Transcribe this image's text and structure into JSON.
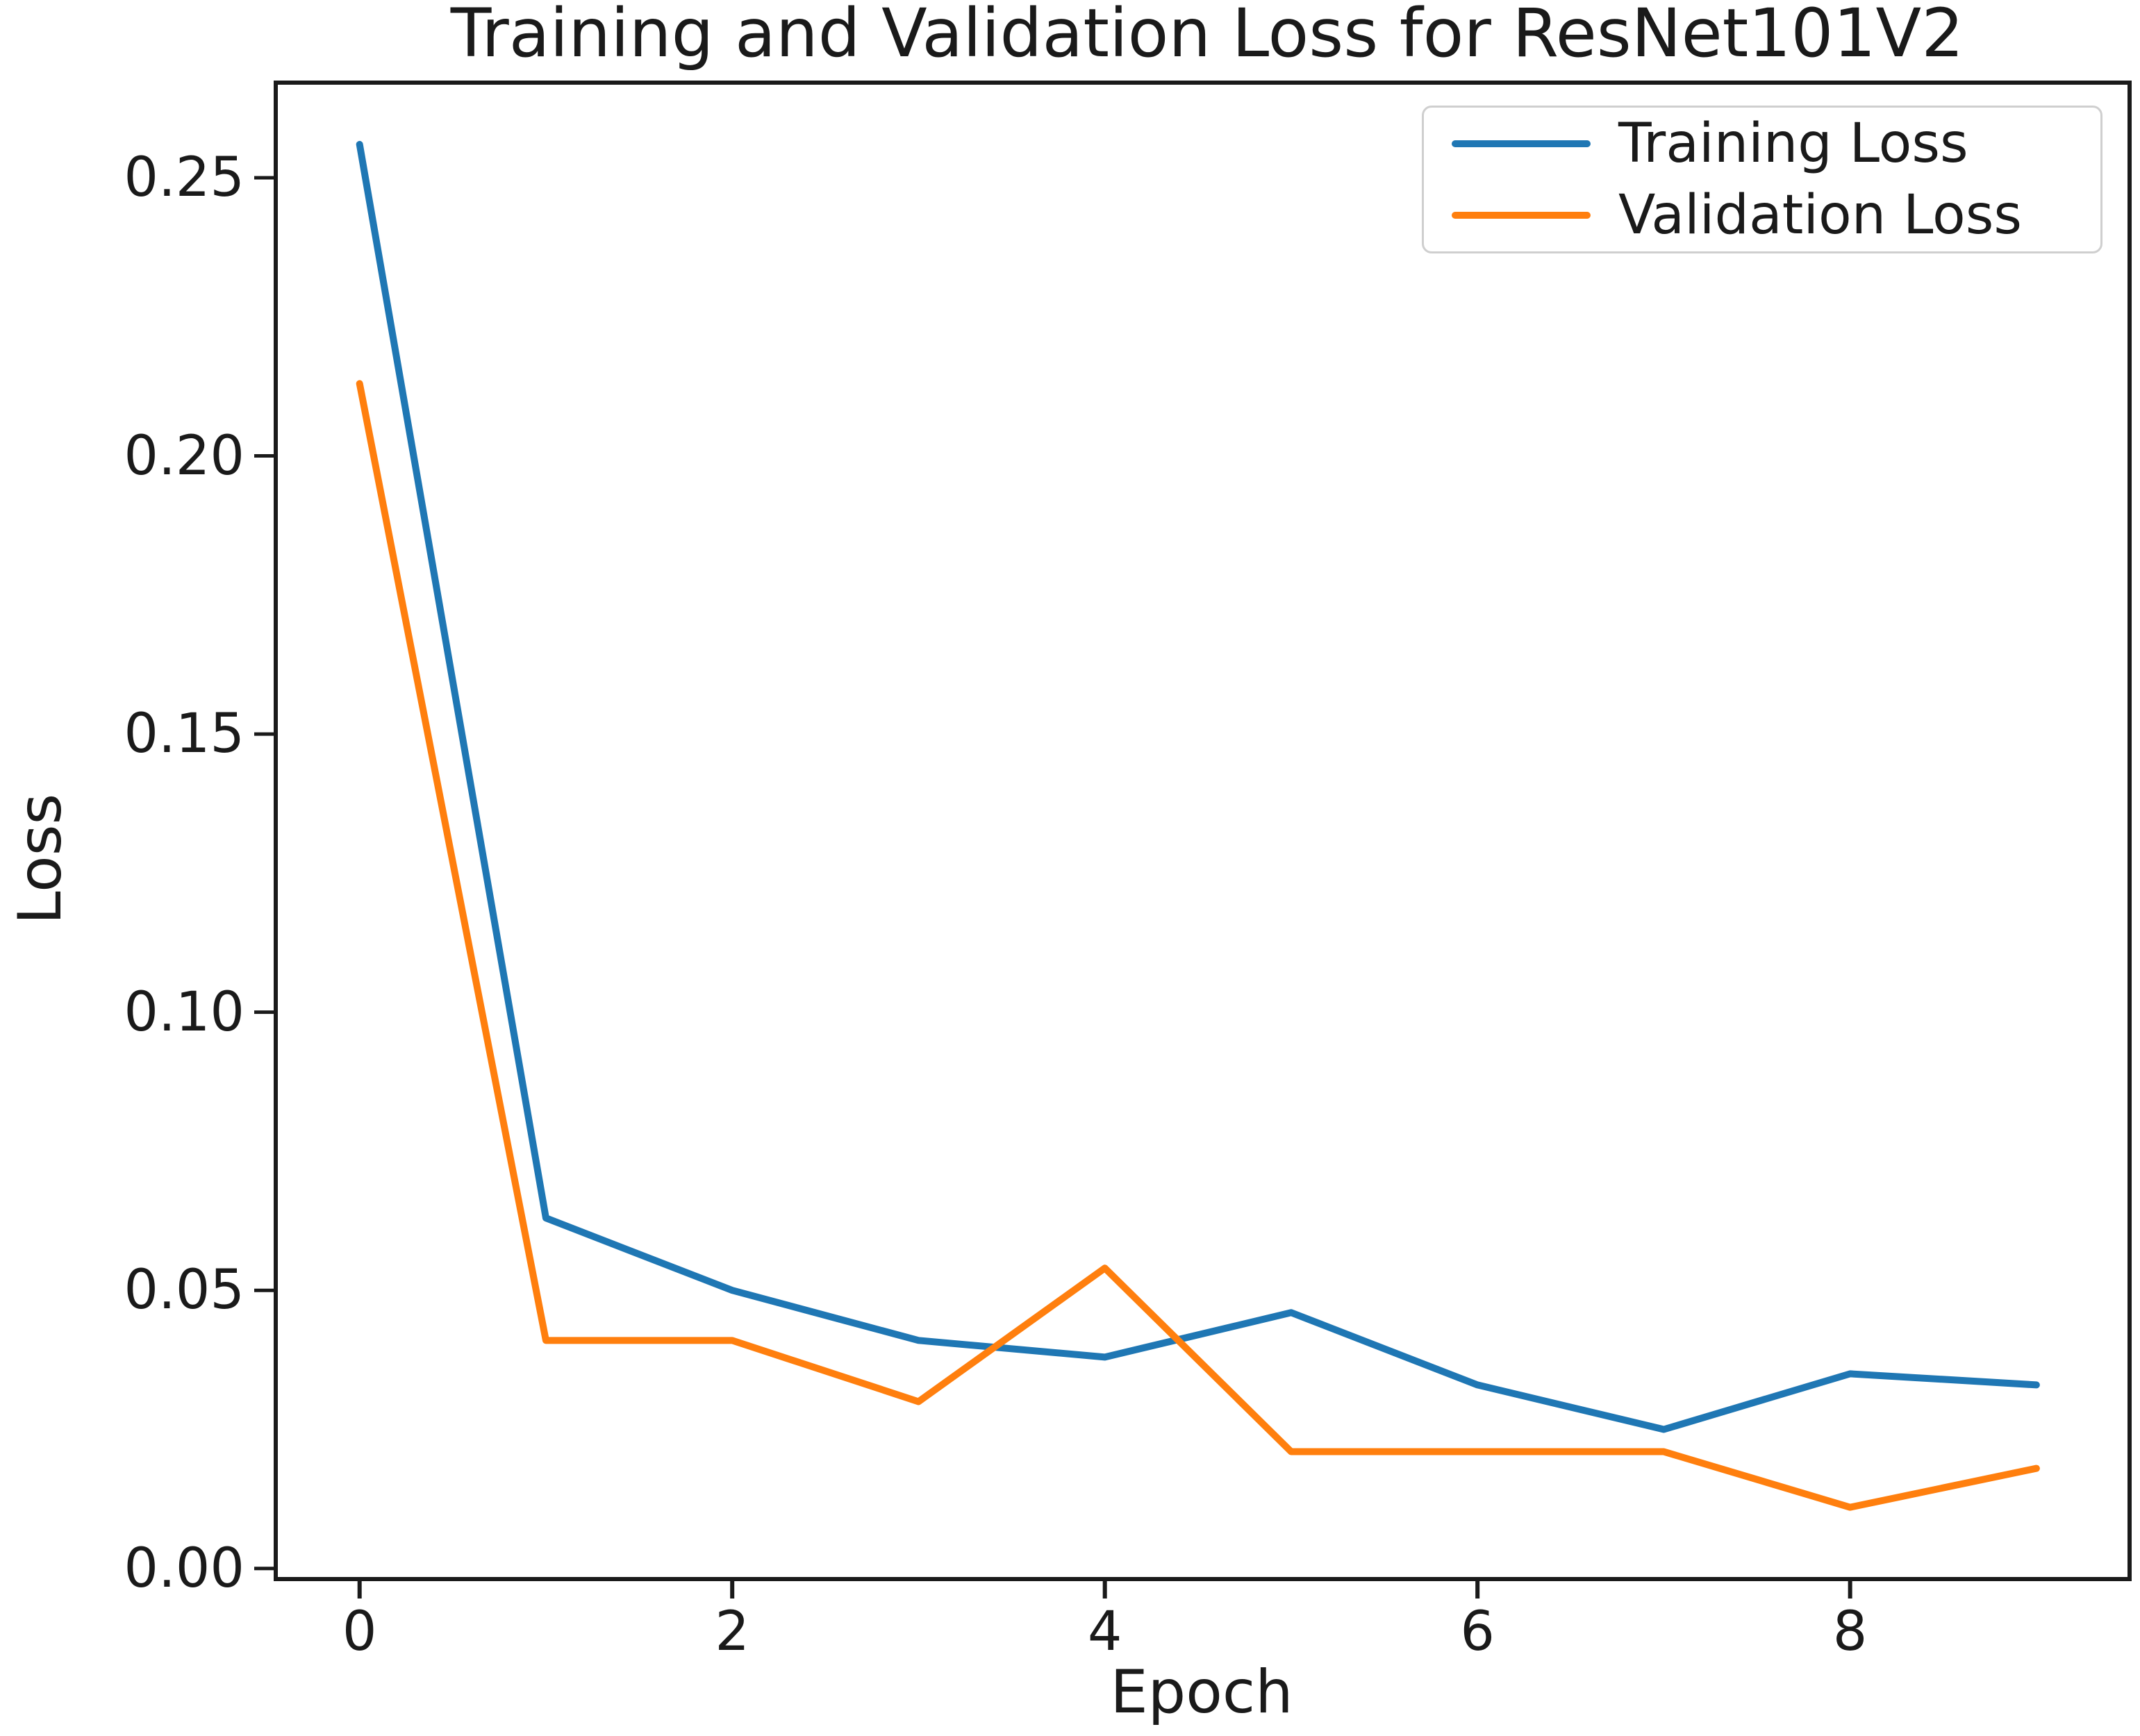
{
  "chart_data": {
    "type": "line",
    "title": "Training and Validation Loss for ResNet101V2",
    "xlabel": "Epoch",
    "ylabel": "Loss",
    "x": [
      0,
      1,
      2,
      3,
      4,
      5,
      6,
      7,
      8,
      9
    ],
    "series": [
      {
        "name": "Training Loss",
        "color": "#1f77b4",
        "values": [
          0.256,
          0.063,
          0.05,
          0.041,
          0.038,
          0.046,
          0.033,
          0.025,
          0.035,
          0.033
        ]
      },
      {
        "name": "Validation Loss",
        "color": "#ff7f0e",
        "values": [
          0.213,
          0.041,
          0.041,
          0.03,
          0.054,
          0.021,
          0.021,
          0.021,
          0.011,
          0.018
        ]
      }
    ],
    "xlim": [
      -0.45,
      9.5
    ],
    "ylim": [
      -0.0019,
      0.2671
    ],
    "xticks": {
      "values": [
        0,
        2,
        4,
        6,
        8
      ],
      "labels": [
        "0",
        "2",
        "4",
        "6",
        "8"
      ]
    },
    "yticks": {
      "values": [
        0.0,
        0.05,
        0.1,
        0.15,
        0.2,
        0.25
      ],
      "labels": [
        "0.00",
        "0.05",
        "0.10",
        "0.15",
        "0.20",
        "0.25"
      ]
    },
    "grid": false,
    "legend_position": "upper right",
    "axis_color": "#1a1a1a",
    "line_width": 10
  }
}
